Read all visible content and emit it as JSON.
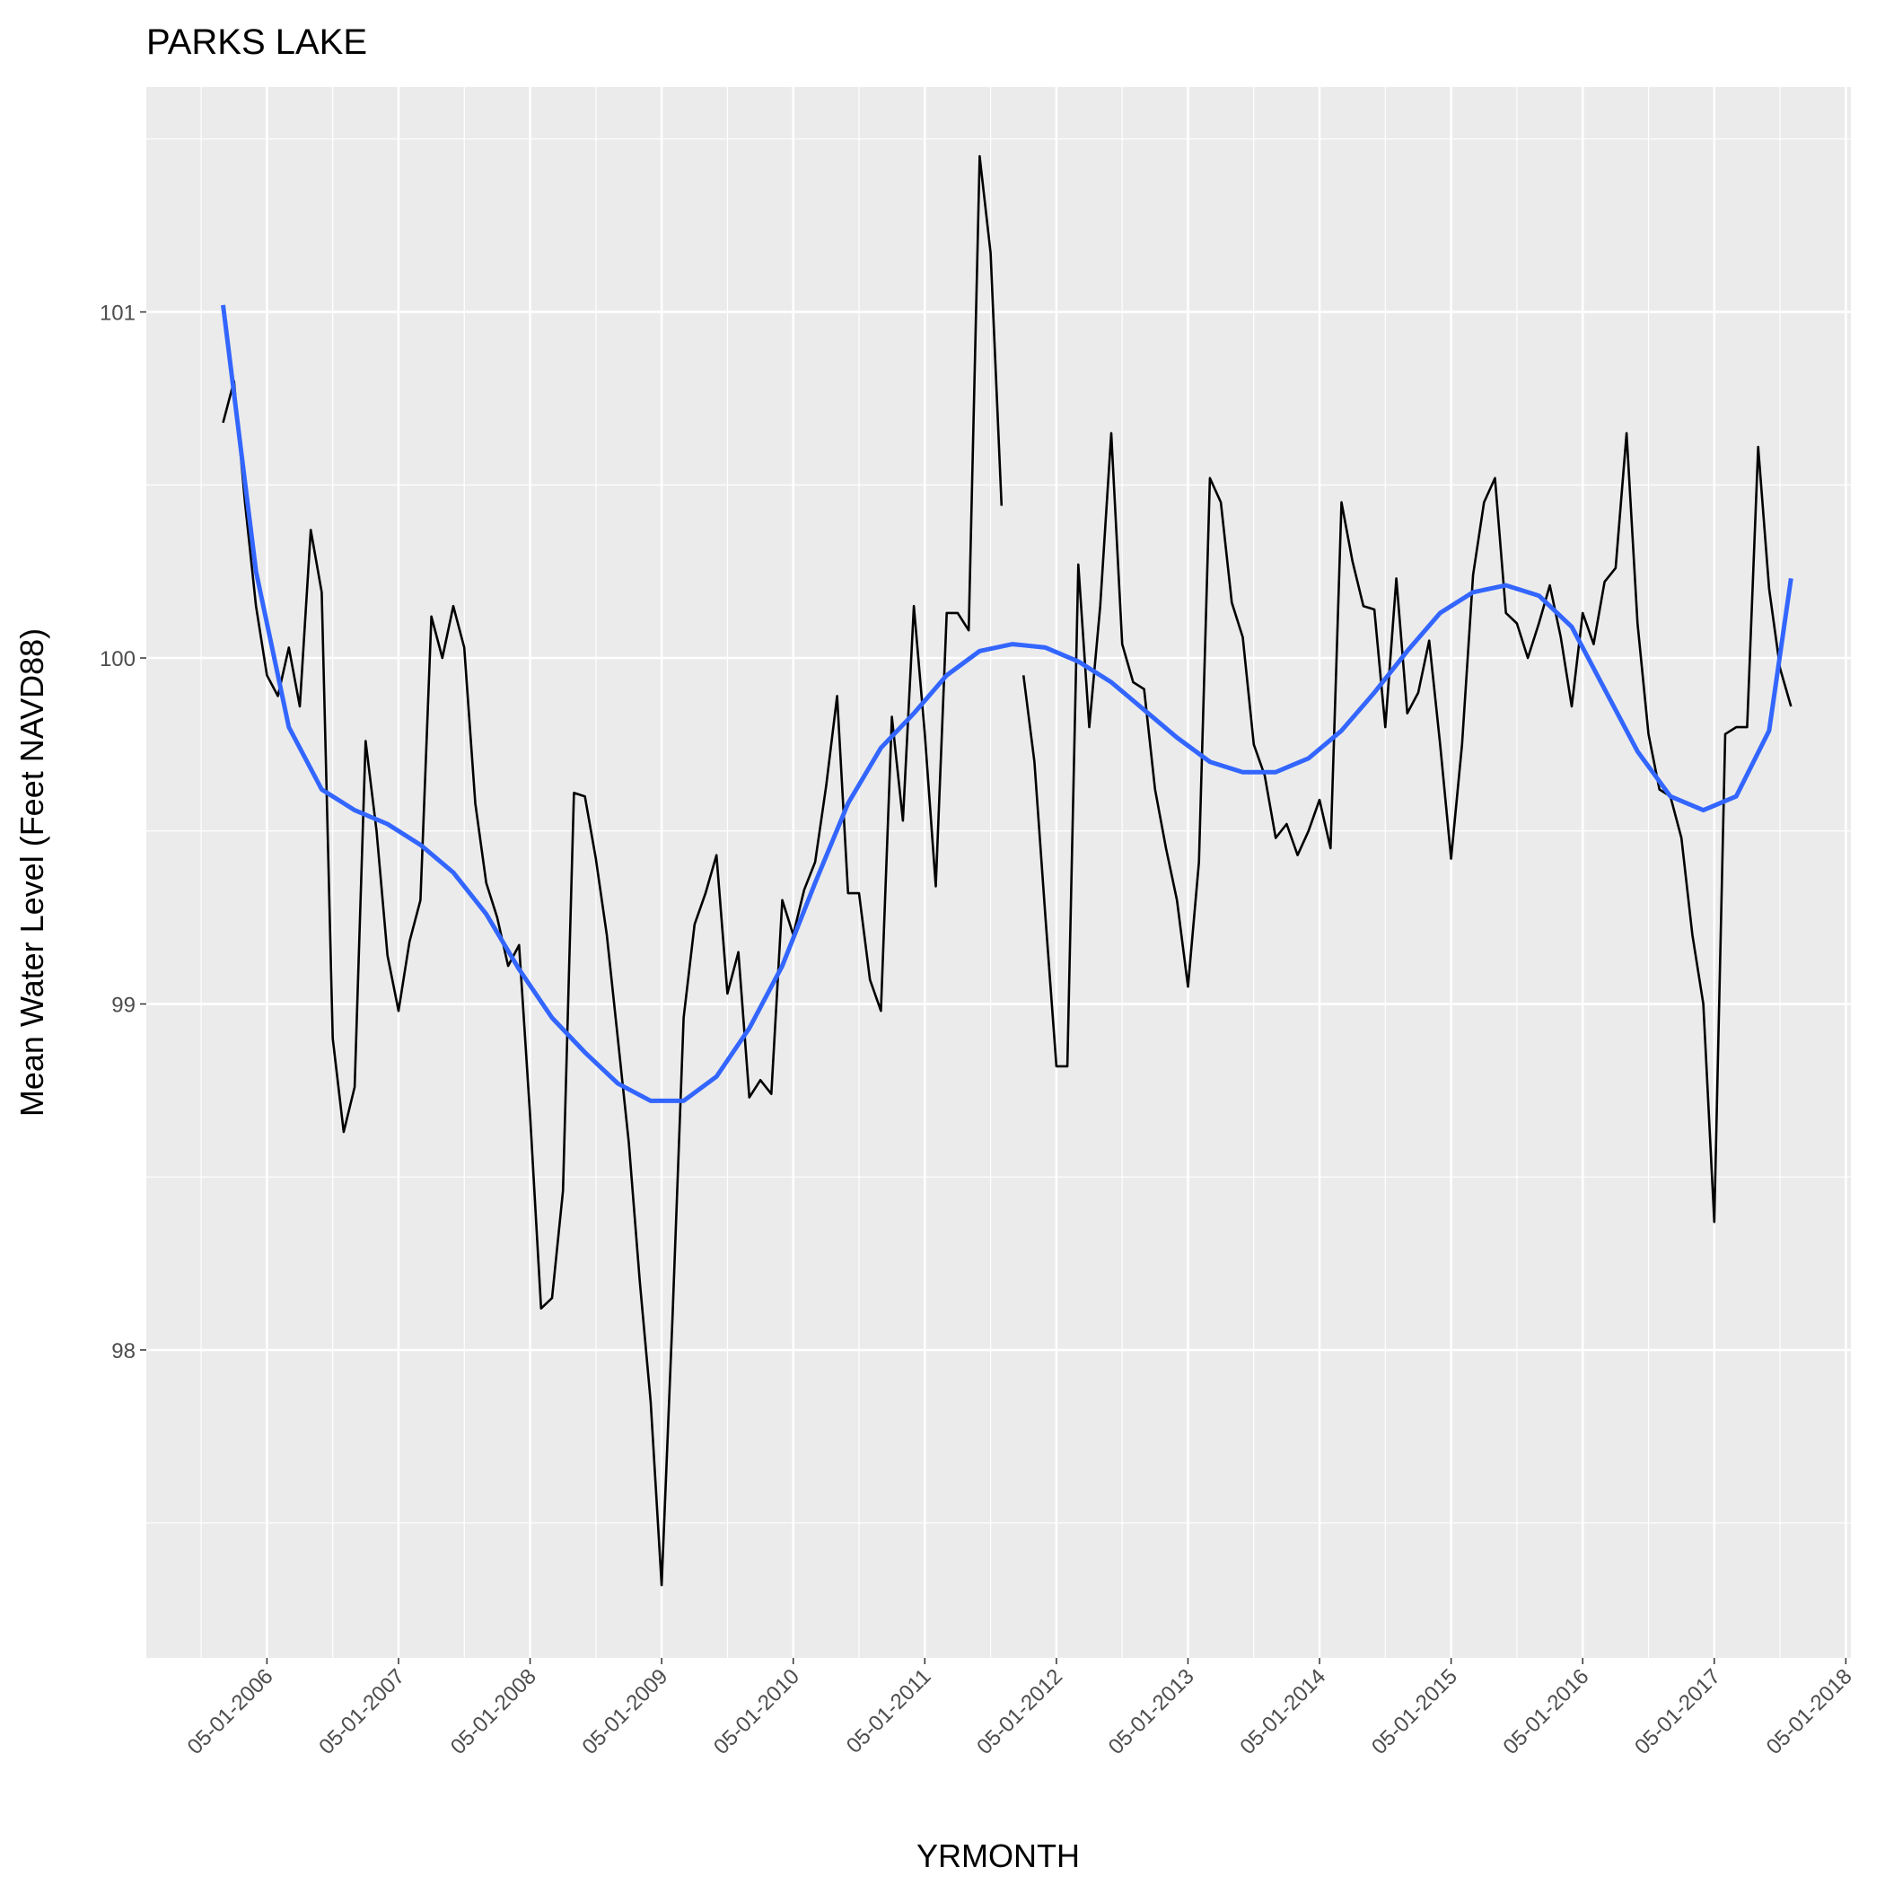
{
  "chart_data": {
    "type": "line",
    "title": "PARKS LAKE",
    "x_label": "YRMONTH",
    "y_label": "Mean Water Level (Feet NAVD88)",
    "xlim": [
      "06-01-2005",
      "05-15-2018"
    ],
    "xticks": [
      "05-01-2006",
      "05-01-2007",
      "05-01-2008",
      "05-01-2009",
      "05-01-2010",
      "05-01-2011",
      "05-01-2012",
      "05-01-2013",
      "05-01-2014",
      "05-01-2015",
      "05-01-2016",
      "05-01-2017",
      "05-01-2018"
    ],
    "ylim": [
      97.11,
      101.65
    ],
    "yticks": [
      98,
      99,
      100,
      101
    ],
    "grid": true,
    "series": [
      {
        "color": "#000000",
        "x": [
          "01-01-2006",
          "02-01-2006",
          "03-01-2006",
          "04-01-2006",
          "05-01-2006",
          "06-01-2006",
          "07-01-2006",
          "08-01-2006",
          "09-01-2006",
          "10-01-2006",
          "11-01-2006",
          "12-01-2006",
          "01-01-2007",
          "02-01-2007",
          "03-01-2007",
          "04-01-2007",
          "05-01-2007",
          "06-01-2007",
          "07-01-2007",
          "08-01-2007",
          "09-01-2007",
          "10-01-2007",
          "11-01-2007",
          "12-01-2007",
          "01-01-2008",
          "02-01-2008",
          "03-01-2008",
          "04-01-2008",
          "05-01-2008",
          "06-01-2008",
          "07-01-2008",
          "08-01-2008",
          "09-01-2008",
          "10-01-2008",
          "11-01-2008",
          "12-01-2008",
          "01-01-2009",
          "02-01-2009",
          "03-01-2009",
          "04-01-2009",
          "05-01-2009",
          "06-01-2009",
          "07-01-2009",
          "08-01-2009",
          "09-01-2009",
          "10-01-2009",
          "11-01-2009",
          "12-01-2009",
          "01-01-2010",
          "02-01-2010",
          "03-01-2010",
          "04-01-2010",
          "05-01-2010",
          "06-01-2010",
          "07-01-2010",
          "08-01-2010",
          "09-01-2010",
          "10-01-2010",
          "11-01-2010",
          "12-01-2010",
          "01-01-2011",
          "02-01-2011",
          "03-01-2011",
          "04-01-2011",
          "05-01-2011",
          "06-01-2011",
          "07-01-2011",
          "08-01-2011",
          "09-01-2011",
          "10-01-2011",
          "11-01-2011",
          "12-01-2011",
          "01-01-2012",
          "02-01-2012",
          "03-01-2012",
          "04-01-2012",
          "05-01-2012",
          "06-01-2012",
          "07-01-2012",
          "08-01-2012",
          "09-01-2012",
          "10-01-2012",
          "11-01-2012",
          "12-01-2012",
          "01-01-2013",
          "02-01-2013",
          "03-01-2013",
          "04-01-2013",
          "05-01-2013",
          "06-01-2013",
          "07-01-2013",
          "08-01-2013",
          "09-01-2013",
          "10-01-2013",
          "11-01-2013",
          "12-01-2013",
          "01-01-2014",
          "02-01-2014",
          "03-01-2014",
          "04-01-2014",
          "05-01-2014",
          "06-01-2014",
          "07-01-2014",
          "08-01-2014",
          "09-01-2014",
          "10-01-2014",
          "11-01-2014",
          "12-01-2014",
          "01-01-2015",
          "02-01-2015",
          "03-01-2015",
          "04-01-2015",
          "05-01-2015",
          "06-01-2015",
          "07-01-2015",
          "08-01-2015",
          "09-01-2015",
          "10-01-2015",
          "11-01-2015",
          "12-01-2015",
          "01-01-2016",
          "02-01-2016",
          "03-01-2016",
          "04-01-2016",
          "05-01-2016",
          "06-01-2016",
          "07-01-2016",
          "08-01-2016",
          "09-01-2016",
          "10-01-2016",
          "11-01-2016",
          "12-01-2016",
          "01-01-2017",
          "02-01-2017",
          "03-01-2017",
          "04-01-2017",
          "05-01-2017",
          "06-01-2017",
          "07-01-2017",
          "08-01-2017",
          "09-01-2017",
          "10-01-2017",
          "11-01-2017",
          "12-01-2017"
        ],
        "values": [
          100.68,
          100.8,
          100.45,
          100.15,
          99.95,
          99.89,
          100.03,
          99.86,
          100.37,
          100.19,
          98.9,
          98.63,
          98.76,
          99.76,
          99.5,
          99.14,
          98.98,
          99.18,
          99.3,
          100.12,
          100.0,
          100.15,
          100.03,
          99.58,
          99.35,
          99.25,
          99.11,
          99.17,
          98.68,
          98.12,
          98.15,
          98.46,
          99.61,
          99.6,
          99.42,
          99.2,
          98.9,
          98.6,
          98.2,
          97.85,
          97.32,
          98.1,
          98.96,
          99.23,
          99.32,
          99.43,
          99.03,
          99.15,
          98.73,
          98.78,
          98.74,
          99.3,
          99.2,
          99.33,
          99.41,
          99.63,
          99.89,
          99.32,
          99.32,
          99.07,
          98.98,
          99.83,
          99.53,
          100.15,
          99.78,
          99.34,
          100.13,
          100.13,
          100.08,
          101.45,
          101.17,
          100.44,
          null,
          99.95,
          99.7,
          99.25,
          98.82,
          98.82,
          100.27,
          99.8,
          100.15,
          100.65,
          100.04,
          99.93,
          99.91,
          99.62,
          99.45,
          99.3,
          99.05,
          99.41,
          100.52,
          100.45,
          100.16,
          100.06,
          99.75,
          99.66,
          99.48,
          99.52,
          99.43,
          99.5,
          99.59,
          99.45,
          100.45,
          100.28,
          100.15,
          100.14,
          99.8,
          100.23,
          99.84,
          99.9,
          100.05,
          99.75,
          99.42,
          99.75,
          100.24,
          100.45,
          100.52,
          100.13,
          100.1,
          100.0,
          100.1,
          100.21,
          100.06,
          99.86,
          100.13,
          100.04,
          100.22,
          100.26,
          100.65,
          100.1,
          99.78,
          99.62,
          99.6,
          99.48,
          99.2,
          99.0,
          98.37,
          99.78,
          99.8,
          99.8,
          100.61,
          100.2,
          99.97,
          99.86
        ]
      },
      {
        "color": "#3366ff",
        "x": [
          "01-01-2006",
          "04-01-2006",
          "07-01-2006",
          "10-01-2006",
          "01-01-2007",
          "04-01-2007",
          "07-01-2007",
          "10-01-2007",
          "01-01-2008",
          "04-01-2008",
          "07-01-2008",
          "10-01-2008",
          "01-01-2009",
          "04-01-2009",
          "07-01-2009",
          "10-01-2009",
          "01-01-2010",
          "04-01-2010",
          "07-01-2010",
          "10-01-2010",
          "01-01-2011",
          "04-01-2011",
          "07-01-2011",
          "10-01-2011",
          "01-01-2012",
          "04-01-2012",
          "07-01-2012",
          "10-01-2012",
          "01-01-2013",
          "04-01-2013",
          "07-01-2013",
          "10-01-2013",
          "01-01-2014",
          "04-01-2014",
          "07-01-2014",
          "10-01-2014",
          "01-01-2015",
          "04-01-2015",
          "07-01-2015",
          "10-01-2015",
          "01-01-2016",
          "04-01-2016",
          "07-01-2016",
          "10-01-2016",
          "01-01-2017",
          "04-01-2017",
          "07-01-2017",
          "10-01-2017",
          "12-01-2017"
        ],
        "values": [
          101.02,
          100.25,
          99.8,
          99.62,
          99.56,
          99.52,
          99.46,
          99.38,
          99.26,
          99.1,
          98.96,
          98.86,
          98.77,
          98.72,
          98.72,
          98.79,
          98.93,
          99.11,
          99.35,
          99.58,
          99.74,
          99.84,
          99.95,
          100.02,
          100.04,
          100.03,
          99.99,
          99.93,
          99.85,
          99.77,
          99.7,
          99.67,
          99.67,
          99.71,
          99.79,
          99.9,
          100.02,
          100.13,
          100.19,
          100.21,
          100.18,
          100.09,
          99.91,
          99.73,
          99.6,
          99.56,
          99.6,
          99.79,
          100.23
        ]
      }
    ]
  }
}
